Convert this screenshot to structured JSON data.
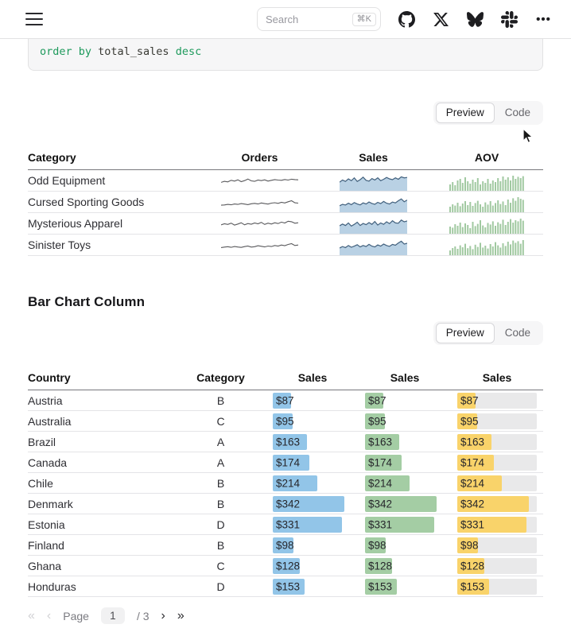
{
  "navbar": {
    "search": {
      "placeholder": "Search",
      "shortcut": "⌘K"
    },
    "icons": [
      "menu-icon",
      "github-icon",
      "x-icon",
      "bluesky-icon",
      "slack-icon",
      "ellipsis-icon"
    ]
  },
  "code_snippet": {
    "keyword1": "order by ",
    "identifier": "total_sales",
    "keyword2": " desc"
  },
  "sparkline_section": {
    "toggle": {
      "preview_label": "Preview",
      "code_label": "Code",
      "active": "Preview"
    },
    "table": {
      "headers": [
        "Category",
        "Orders",
        "Sales",
        "AOV"
      ],
      "rows": [
        {
          "category": "Odd Equipment",
          "orders_spark": [
            35,
            45,
            40,
            55,
            48,
            60,
            42,
            52,
            68,
            50,
            45,
            58,
            52,
            60,
            48,
            55,
            62,
            58,
            55,
            63,
            58,
            66,
            62,
            60
          ],
          "sales_spark": [
            55,
            70,
            60,
            78,
            65,
            85,
            60,
            72,
            90,
            68,
            62,
            80,
            70,
            85,
            65,
            75,
            88,
            78,
            72,
            85,
            75,
            92,
            85,
            88
          ],
          "aov_spark": [
            40,
            55,
            35,
            65,
            75,
            50,
            85,
            60,
            45,
            70,
            55,
            80,
            40,
            60,
            50,
            75,
            45,
            65,
            55,
            80,
            60,
            90,
            70,
            85,
            65,
            95,
            75,
            88,
            80,
            92
          ]
        },
        {
          "category": "Cursed Sporting Goods",
          "orders_spark": [
            22,
            25,
            30,
            26,
            34,
            30,
            38,
            33,
            28,
            36,
            40,
            34,
            44,
            38,
            33,
            42,
            46,
            40,
            50,
            44,
            55,
            65,
            45,
            42
          ],
          "sales_spark": [
            40,
            50,
            45,
            58,
            48,
            62,
            52,
            46,
            60,
            52,
            66,
            56,
            50,
            64,
            55,
            70,
            58,
            52,
            66,
            60,
            75,
            88,
            68,
            80
          ],
          "aov_spark": [
            35,
            50,
            42,
            60,
            38,
            55,
            70,
            45,
            65,
            40,
            58,
            72,
            50,
            35,
            62,
            48,
            70,
            42,
            58,
            75,
            52,
            68,
            45,
            80,
            60,
            88,
            72,
            95,
            85,
            78
          ]
        },
        {
          "category": "Mysterious Apparel",
          "orders_spark": [
            40,
            50,
            44,
            56,
            38,
            48,
            60,
            40,
            52,
            46,
            58,
            50,
            64,
            44,
            56,
            48,
            60,
            52,
            66,
            58,
            75,
            70,
            55,
            60
          ],
          "sales_spark": [
            50,
            62,
            52,
            70,
            48,
            60,
            75,
            52,
            66,
            58,
            72,
            60,
            80,
            55,
            70,
            60,
            78,
            65,
            85,
            70,
            68,
            90,
            78,
            84
          ],
          "aov_spark": [
            45,
            38,
            60,
            50,
            70,
            42,
            65,
            55,
            35,
            75,
            48,
            62,
            85,
            52,
            40,
            68,
            58,
            78,
            50,
            72,
            62,
            88,
            55,
            75,
            92,
            70,
            85,
            78,
            95,
            82
          ]
        },
        {
          "category": "Sinister Toys",
          "orders_spark": [
            28,
            32,
            36,
            30,
            38,
            33,
            29,
            37,
            42,
            32,
            36,
            45,
            40,
            34,
            42,
            38,
            48,
            42,
            52,
            46,
            58,
            65,
            48,
            52
          ],
          "sales_spark": [
            45,
            55,
            48,
            62,
            50,
            58,
            68,
            52,
            62,
            55,
            70,
            58,
            52,
            66,
            58,
            72,
            62,
            56,
            70,
            64,
            80,
            92,
            72,
            78
          ],
          "aov_spark": [
            30,
            45,
            55,
            40,
            62,
            50,
            72,
            44,
            58,
            38,
            66,
            52,
            78,
            48,
            60,
            42,
            70,
            55,
            82,
            62,
            48,
            75,
            58,
            85,
            68,
            92,
            78,
            88,
            72,
            95
          ]
        }
      ]
    }
  },
  "bar_chart_section": {
    "title": "Bar Chart Column",
    "toggle": {
      "preview_label": "Preview",
      "code_label": "Code",
      "active": "Preview"
    },
    "table": {
      "headers": [
        "Country",
        "Category",
        "Sales",
        "Sales",
        "Sales"
      ],
      "scale_max": 380,
      "currency_prefix": "$",
      "rows": [
        {
          "country": "Austria",
          "category": "B",
          "sales": 87
        },
        {
          "country": "Australia",
          "category": "C",
          "sales": 95
        },
        {
          "country": "Brazil",
          "category": "A",
          "sales": 163
        },
        {
          "country": "Canada",
          "category": "A",
          "sales": 174
        },
        {
          "country": "Chile",
          "category": "B",
          "sales": 214
        },
        {
          "country": "Denmark",
          "category": "B",
          "sales": 342
        },
        {
          "country": "Estonia",
          "category": "D",
          "sales": 331
        },
        {
          "country": "Finland",
          "category": "B",
          "sales": 98
        },
        {
          "country": "Ghana",
          "category": "C",
          "sales": 128
        },
        {
          "country": "Honduras",
          "category": "D",
          "sales": 153
        }
      ]
    }
  },
  "pagination": {
    "first": "«",
    "prev": "‹",
    "label": "Page",
    "current": "1",
    "separator": "/",
    "total": "3",
    "next": "›",
    "last": "»"
  },
  "colors": {
    "bar_blue": "#92c5e8",
    "bar_green": "#a4cda4",
    "bar_yellow": "#f9d36a",
    "bar_track": "#e9e9ea",
    "spark_line": "#59595c",
    "spark_area_fill": "#b9d1e4",
    "spark_area_stroke": "#41607d",
    "spark_bar_green": "#a1c9a1",
    "code_keyword_green": "#1e9a5c"
  }
}
